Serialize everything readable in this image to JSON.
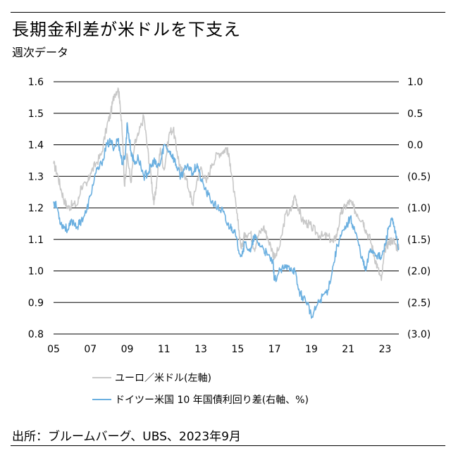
{
  "header": {
    "title": "長期金利差が米ドルを下支え",
    "subtitle": "週次データ"
  },
  "footer": {
    "source": "出所：ブルームバーグ、UBS、2023年9月"
  },
  "chart_data": {
    "type": "line",
    "title": "長期金利差が米ドルを下支え",
    "subtitle": "週次データ",
    "x_ticks": [
      "05",
      "07",
      "09",
      "11",
      "13",
      "15",
      "17",
      "19",
      "21",
      "23"
    ],
    "y_left": {
      "ticks": [
        "0.8",
        "0.9",
        "1.0",
        "1.1",
        "1.2",
        "1.3",
        "1.4",
        "1.5",
        "1.6"
      ],
      "range": [
        0.8,
        1.6
      ]
    },
    "y_right": {
      "ticks": [
        "(3.0)",
        "(2.5)",
        "(2.0)",
        "(1.5)",
        "(1.0)",
        "(0.5)",
        "0.0",
        "0.5",
        "1.0"
      ],
      "range": [
        -3.0,
        1.0
      ]
    },
    "x_range": [
      2005.0,
      2023.75
    ],
    "grid": true,
    "legend_position": "bottom",
    "series": [
      {
        "name": "ユーロ／米ドル(左軸)",
        "axis": "left",
        "color": "#c8c8c8",
        "points": [
          [
            2005.0,
            1.34
          ],
          [
            2005.2,
            1.31
          ],
          [
            2005.4,
            1.26
          ],
          [
            2005.6,
            1.22
          ],
          [
            2005.8,
            1.2
          ],
          [
            2006.0,
            1.21
          ],
          [
            2006.3,
            1.21
          ],
          [
            2006.5,
            1.27
          ],
          [
            2006.8,
            1.27
          ],
          [
            2007.0,
            1.31
          ],
          [
            2007.3,
            1.34
          ],
          [
            2007.6,
            1.37
          ],
          [
            2007.9,
            1.46
          ],
          [
            2008.1,
            1.5
          ],
          [
            2008.3,
            1.56
          ],
          [
            2008.5,
            1.58
          ],
          [
            2008.6,
            1.54
          ],
          [
            2008.75,
            1.42
          ],
          [
            2008.85,
            1.27
          ],
          [
            2009.0,
            1.37
          ],
          [
            2009.2,
            1.28
          ],
          [
            2009.4,
            1.4
          ],
          [
            2009.6,
            1.43
          ],
          [
            2009.9,
            1.49
          ],
          [
            2010.1,
            1.39
          ],
          [
            2010.3,
            1.3
          ],
          [
            2010.45,
            1.21
          ],
          [
            2010.6,
            1.28
          ],
          [
            2010.8,
            1.39
          ],
          [
            2011.0,
            1.32
          ],
          [
            2011.3,
            1.44
          ],
          [
            2011.5,
            1.45
          ],
          [
            2011.7,
            1.38
          ],
          [
            2011.9,
            1.32
          ],
          [
            2012.1,
            1.31
          ],
          [
            2012.4,
            1.25
          ],
          [
            2012.55,
            1.21
          ],
          [
            2012.8,
            1.29
          ],
          [
            2013.0,
            1.33
          ],
          [
            2013.3,
            1.28
          ],
          [
            2013.6,
            1.34
          ],
          [
            2013.9,
            1.37
          ],
          [
            2014.2,
            1.38
          ],
          [
            2014.4,
            1.39
          ],
          [
            2014.6,
            1.34
          ],
          [
            2014.8,
            1.25
          ],
          [
            2015.0,
            1.16
          ],
          [
            2015.2,
            1.07
          ],
          [
            2015.4,
            1.12
          ],
          [
            2015.7,
            1.12
          ],
          [
            2015.9,
            1.07
          ],
          [
            2016.1,
            1.11
          ],
          [
            2016.4,
            1.14
          ],
          [
            2016.6,
            1.11
          ],
          [
            2016.9,
            1.06
          ],
          [
            2017.0,
            1.04
          ],
          [
            2017.3,
            1.08
          ],
          [
            2017.6,
            1.18
          ],
          [
            2017.9,
            1.19
          ],
          [
            2018.1,
            1.24
          ],
          [
            2018.3,
            1.2
          ],
          [
            2018.5,
            1.16
          ],
          [
            2018.8,
            1.15
          ],
          [
            2019.0,
            1.14
          ],
          [
            2019.3,
            1.12
          ],
          [
            2019.6,
            1.11
          ],
          [
            2019.9,
            1.11
          ],
          [
            2020.2,
            1.09
          ],
          [
            2020.4,
            1.12
          ],
          [
            2020.6,
            1.18
          ],
          [
            2020.9,
            1.21
          ],
          [
            2021.1,
            1.22
          ],
          [
            2021.3,
            1.2
          ],
          [
            2021.5,
            1.18
          ],
          [
            2021.8,
            1.16
          ],
          [
            2021.95,
            1.13
          ],
          [
            2022.2,
            1.1
          ],
          [
            2022.4,
            1.05
          ],
          [
            2022.6,
            1.01
          ],
          [
            2022.8,
            0.97
          ],
          [
            2023.0,
            1.07
          ],
          [
            2023.2,
            1.09
          ],
          [
            2023.4,
            1.1
          ],
          [
            2023.6,
            1.08
          ],
          [
            2023.75,
            1.07
          ]
        ]
      },
      {
        "name": "ドイツー米国 10 年国債利回り差(右軸、%)",
        "axis": "right",
        "color": "#6aafe0",
        "points": [
          [
            2005.0,
            -0.9
          ],
          [
            2005.2,
            -1.0
          ],
          [
            2005.4,
            -1.25
          ],
          [
            2005.6,
            -1.3
          ],
          [
            2005.8,
            -1.35
          ],
          [
            2006.0,
            -1.2
          ],
          [
            2006.3,
            -1.3
          ],
          [
            2006.5,
            -1.2
          ],
          [
            2006.8,
            -1.05
          ],
          [
            2007.0,
            -0.8
          ],
          [
            2007.3,
            -0.45
          ],
          [
            2007.6,
            -0.3
          ],
          [
            2007.9,
            0.0
          ],
          [
            2008.1,
            0.05
          ],
          [
            2008.3,
            -0.05
          ],
          [
            2008.5,
            0.1
          ],
          [
            2008.6,
            -0.1
          ],
          [
            2008.75,
            -0.3
          ],
          [
            2008.9,
            -0.15
          ],
          [
            2009.0,
            0.35
          ],
          [
            2009.2,
            -0.1
          ],
          [
            2009.4,
            -0.3
          ],
          [
            2009.6,
            -0.2
          ],
          [
            2009.9,
            -0.5
          ],
          [
            2010.1,
            -0.45
          ],
          [
            2010.3,
            -0.35
          ],
          [
            2010.45,
            -0.25
          ],
          [
            2010.6,
            -0.35
          ],
          [
            2010.8,
            -0.3
          ],
          [
            2011.0,
            0.0
          ],
          [
            2011.3,
            -0.1
          ],
          [
            2011.5,
            -0.2
          ],
          [
            2011.7,
            -0.35
          ],
          [
            2011.9,
            -0.5
          ],
          [
            2012.1,
            -0.4
          ],
          [
            2012.4,
            -0.35
          ],
          [
            2012.55,
            -0.45
          ],
          [
            2012.8,
            -0.3
          ],
          [
            2013.0,
            -0.55
          ],
          [
            2013.3,
            -0.75
          ],
          [
            2013.6,
            -0.9
          ],
          [
            2013.9,
            -1.0
          ],
          [
            2014.2,
            -1.05
          ],
          [
            2014.4,
            -1.25
          ],
          [
            2014.6,
            -1.3
          ],
          [
            2014.8,
            -1.35
          ],
          [
            2015.0,
            -1.6
          ],
          [
            2015.2,
            -1.75
          ],
          [
            2015.4,
            -1.55
          ],
          [
            2015.7,
            -1.7
          ],
          [
            2015.9,
            -1.45
          ],
          [
            2016.1,
            -1.55
          ],
          [
            2016.4,
            -1.65
          ],
          [
            2016.6,
            -1.75
          ],
          [
            2016.9,
            -1.85
          ],
          [
            2017.0,
            -2.15
          ],
          [
            2017.3,
            -2.0
          ],
          [
            2017.6,
            -1.95
          ],
          [
            2017.9,
            -1.95
          ],
          [
            2018.1,
            -2.0
          ],
          [
            2018.3,
            -2.3
          ],
          [
            2018.5,
            -2.4
          ],
          [
            2018.8,
            -2.5
          ],
          [
            2019.0,
            -2.75
          ],
          [
            2019.3,
            -2.55
          ],
          [
            2019.6,
            -2.4
          ],
          [
            2019.9,
            -2.3
          ],
          [
            2020.2,
            -1.9
          ],
          [
            2020.4,
            -1.6
          ],
          [
            2020.6,
            -1.45
          ],
          [
            2020.9,
            -1.3
          ],
          [
            2021.1,
            -1.15
          ],
          [
            2021.3,
            -1.3
          ],
          [
            2021.5,
            -1.5
          ],
          [
            2021.8,
            -1.85
          ],
          [
            2021.95,
            -2.0
          ],
          [
            2022.2,
            -1.65
          ],
          [
            2022.4,
            -1.7
          ],
          [
            2022.6,
            -1.75
          ],
          [
            2022.8,
            -1.8
          ],
          [
            2023.0,
            -1.6
          ],
          [
            2023.2,
            -1.3
          ],
          [
            2023.4,
            -1.2
          ],
          [
            2023.55,
            -1.4
          ],
          [
            2023.75,
            -1.65
          ]
        ]
      }
    ]
  }
}
